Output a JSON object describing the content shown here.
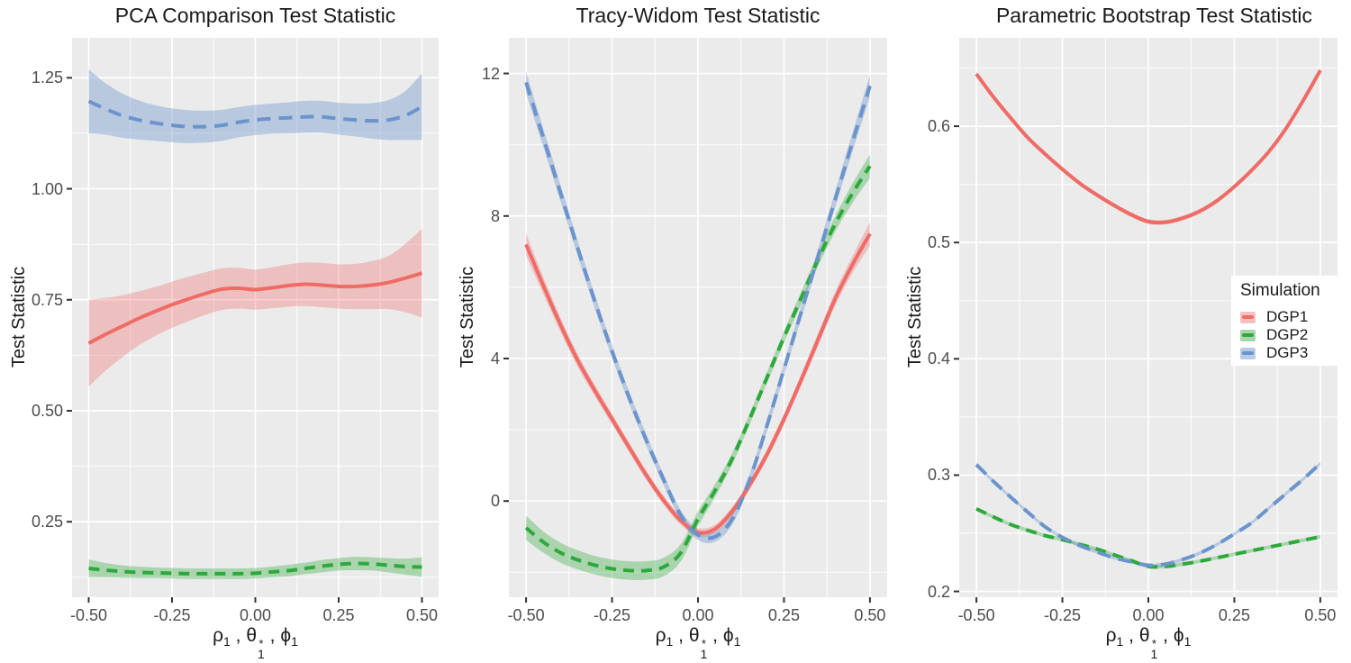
{
  "figure": {
    "ylabel": "Test Statistic",
    "xlabel": {
      "rho": "ρ",
      "rho_sub": "1",
      "sep1": " , ",
      "theta": "θ",
      "theta_sub": "1",
      "theta_sup": "*",
      "sep2": " , ",
      "phi": "ϕ",
      "phi_sub": "1"
    },
    "colors": {
      "panel_background": "#EBEBEB",
      "grid": "#FFFFFF",
      "tick_mark": "#333333",
      "tick_label": "#4D4D4D",
      "text": "#1A1A1A"
    }
  },
  "legend": {
    "title": "Simulation",
    "items": [
      {
        "label": "DGP1",
        "line_color": "#EF6B66",
        "fill_color": "#F5C1BF"
      },
      {
        "label": "DGP2",
        "line_color": "#2DA93C",
        "fill_color": "#ABD4AE"
      },
      {
        "label": "DGP3",
        "line_color": "#6B94CD",
        "fill_color": "#B7CBE9"
      }
    ]
  },
  "chart_data": [
    {
      "type": "line",
      "title": "PCA Comparison Test Statistic",
      "ylabel": "Test Statistic",
      "xlim": [
        -0.55,
        0.55
      ],
      "ylim": [
        0.08,
        1.34
      ],
      "x_ticks": [
        -0.5,
        -0.25,
        0,
        0.25,
        0.5
      ],
      "x_tick_labels": [
        "-0.50",
        "-0.25",
        "0.00",
        "0.25",
        "0.50"
      ],
      "y_ticks": [
        0.25,
        0.5,
        0.75,
        1.0,
        1.25
      ],
      "y_tick_labels": [
        "0.25",
        "0.50",
        "0.75",
        "1.00",
        "1.25"
      ],
      "grid": true,
      "legend_position": "none",
      "x": [
        -0.5,
        -0.45,
        -0.4,
        -0.35,
        -0.3,
        -0.25,
        -0.2,
        -0.15,
        -0.1,
        -0.05,
        0,
        0.05,
        0.1,
        0.15,
        0.2,
        0.25,
        0.3,
        0.35,
        0.4,
        0.45,
        0.5
      ],
      "series": [
        {
          "name": "DGP1",
          "line_color": "#EF6B66",
          "ribbon_color": "rgba(239,107,102,0.33)",
          "dash": null,
          "y": [
            0.652,
            0.672,
            0.69,
            0.708,
            0.724,
            0.739,
            0.752,
            0.764,
            0.774,
            0.776,
            0.773,
            0.777,
            0.782,
            0.785,
            0.783,
            0.78,
            0.78,
            0.783,
            0.789,
            0.799,
            0.81
          ],
          "ribbon_hw": [
            0.098,
            0.082,
            0.07,
            0.061,
            0.055,
            0.052,
            0.05,
            0.048,
            0.047,
            0.046,
            0.045,
            0.046,
            0.048,
            0.049,
            0.05,
            0.05,
            0.051,
            0.054,
            0.06,
            0.077,
            0.1
          ]
        },
        {
          "name": "DGP2",
          "line_color": "#2DA93C",
          "ribbon_color": "rgba(45,169,60,0.35)",
          "dash": "12 8",
          "y": [
            0.145,
            0.141,
            0.138,
            0.136,
            0.135,
            0.134,
            0.133,
            0.133,
            0.133,
            0.133,
            0.134,
            0.137,
            0.14,
            0.145,
            0.15,
            0.154,
            0.156,
            0.155,
            0.152,
            0.149,
            0.148
          ],
          "ribbon_hw": [
            0.02,
            0.016,
            0.014,
            0.013,
            0.012,
            0.012,
            0.012,
            0.012,
            0.012,
            0.012,
            0.012,
            0.012,
            0.013,
            0.013,
            0.014,
            0.014,
            0.015,
            0.015,
            0.016,
            0.018,
            0.022
          ]
        },
        {
          "name": "DGP3",
          "line_color": "#6B94CD",
          "ribbon_color": "rgba(107,148,205,0.4)",
          "dash": "15 9",
          "y": [
            1.197,
            1.18,
            1.165,
            1.155,
            1.148,
            1.143,
            1.14,
            1.14,
            1.143,
            1.15,
            1.155,
            1.158,
            1.16,
            1.162,
            1.162,
            1.158,
            1.155,
            1.153,
            1.155,
            1.165,
            1.185
          ],
          "ribbon_hw": [
            0.072,
            0.058,
            0.05,
            0.044,
            0.04,
            0.038,
            0.037,
            0.036,
            0.035,
            0.034,
            0.034,
            0.034,
            0.035,
            0.036,
            0.036,
            0.036,
            0.037,
            0.04,
            0.045,
            0.055,
            0.075
          ]
        }
      ]
    },
    {
      "type": "line",
      "title": "Tracy-Widom Test Statistic",
      "ylabel": "Test Statistic",
      "xlim": [
        -0.55,
        0.55
      ],
      "ylim": [
        -2.7,
        13.0
      ],
      "x_ticks": [
        -0.5,
        -0.25,
        0,
        0.25,
        0.5
      ],
      "x_tick_labels": [
        "-0.50",
        "-0.25",
        "0.00",
        "0.25",
        "0.50"
      ],
      "y_ticks": [
        0,
        4,
        8,
        12
      ],
      "y_tick_labels": [
        "0",
        "4",
        "8",
        "12"
      ],
      "grid": true,
      "legend_position": "none",
      "x": [
        -0.5,
        -0.45,
        -0.4,
        -0.35,
        -0.3,
        -0.25,
        -0.2,
        -0.15,
        -0.1,
        -0.05,
        0,
        0.05,
        0.1,
        0.15,
        0.2,
        0.25,
        0.3,
        0.35,
        0.4,
        0.45,
        0.5
      ],
      "series": [
        {
          "name": "DGP1",
          "line_color": "#EF6B66",
          "ribbon_color": "rgba(239,107,102,0.33)",
          "dash": null,
          "y": [
            7.2,
            6.05,
            4.95,
            3.95,
            3.1,
            2.3,
            1.5,
            0.72,
            0.02,
            -0.55,
            -0.88,
            -0.78,
            -0.28,
            0.45,
            1.3,
            2.3,
            3.4,
            4.55,
            5.7,
            6.65,
            7.5
          ],
          "ribbon_hw": [
            0.32,
            0.24,
            0.2,
            0.18,
            0.16,
            0.15,
            0.14,
            0.13,
            0.13,
            0.12,
            0.12,
            0.12,
            0.13,
            0.13,
            0.14,
            0.15,
            0.16,
            0.18,
            0.2,
            0.24,
            0.33
          ]
        },
        {
          "name": "DGP2",
          "line_color": "#2DA93C",
          "ribbon_color": "rgba(45,169,60,0.35)",
          "dash": "12 8",
          "y": [
            -0.75,
            -1.15,
            -1.45,
            -1.65,
            -1.8,
            -1.9,
            -1.95,
            -1.95,
            -1.85,
            -1.45,
            -0.5,
            0.3,
            1.2,
            2.3,
            3.45,
            4.6,
            5.7,
            6.8,
            7.8,
            8.65,
            9.4
          ],
          "ribbon_hw": [
            0.34,
            0.3,
            0.28,
            0.27,
            0.26,
            0.26,
            0.26,
            0.26,
            0.26,
            0.24,
            0.21,
            0.18,
            0.16,
            0.15,
            0.15,
            0.16,
            0.17,
            0.19,
            0.22,
            0.27,
            0.33
          ]
        },
        {
          "name": "DGP3",
          "line_color": "#6B94CD",
          "ribbon_color": "rgba(107,148,205,0.4)",
          "dash": "15 9",
          "y": [
            11.75,
            10.2,
            8.65,
            7.1,
            5.6,
            4.2,
            2.9,
            1.7,
            0.6,
            -0.4,
            -0.95,
            -1.0,
            -0.5,
            0.6,
            2.1,
            3.7,
            5.3,
            6.9,
            8.5,
            10.1,
            11.65
          ],
          "ribbon_hw": [
            0.3,
            0.26,
            0.23,
            0.21,
            0.19,
            0.18,
            0.17,
            0.16,
            0.15,
            0.14,
            0.14,
            0.14,
            0.15,
            0.15,
            0.16,
            0.17,
            0.18,
            0.2,
            0.22,
            0.26,
            0.3
          ]
        }
      ]
    },
    {
      "type": "line",
      "title": "Parametric Bootstrap Test Statistic",
      "ylabel": "Test Statistic",
      "xlim": [
        -0.55,
        0.55
      ],
      "ylim": [
        0.195,
        0.676
      ],
      "x_ticks": [
        -0.5,
        -0.25,
        0,
        0.25,
        0.5
      ],
      "x_tick_labels": [
        "-0.50",
        "-0.25",
        "0.00",
        "0.25",
        "0.50"
      ],
      "y_ticks": [
        0.2,
        0.3,
        0.4,
        0.5,
        0.6
      ],
      "y_tick_labels": [
        "0.2",
        "0.3",
        "0.4",
        "0.5",
        "0.6"
      ],
      "grid": true,
      "legend_position": "inside-right",
      "x": [
        -0.5,
        -0.45,
        -0.4,
        -0.35,
        -0.3,
        -0.25,
        -0.2,
        -0.15,
        -0.1,
        -0.05,
        0,
        0.05,
        0.1,
        0.15,
        0.2,
        0.25,
        0.3,
        0.35,
        0.4,
        0.45,
        0.5
      ],
      "series": [
        {
          "name": "DGP1",
          "line_color": "#EF6B66",
          "ribbon_color": "rgba(239,107,102,0.33)",
          "dash": null,
          "y": [
            0.645,
            0.625,
            0.607,
            0.59,
            0.576,
            0.563,
            0.551,
            0.541,
            0.532,
            0.524,
            0.518,
            0.5175,
            0.521,
            0.527,
            0.536,
            0.548,
            0.562,
            0.578,
            0.598,
            0.622,
            0.648
          ],
          "ribbon_hw": 0.002
        },
        {
          "name": "DGP2",
          "line_color": "#2DA93C",
          "ribbon_color": "rgba(45,169,60,0.35)",
          "dash": "12 8",
          "y": [
            0.271,
            0.264,
            0.2575,
            0.2525,
            0.248,
            0.2445,
            0.2405,
            0.2365,
            0.2315,
            0.2265,
            0.2215,
            0.2215,
            0.2235,
            0.226,
            0.229,
            0.232,
            0.235,
            0.238,
            0.241,
            0.244,
            0.247
          ],
          "ribbon_hw": 0.0015
        },
        {
          "name": "DGP3",
          "line_color": "#6B94CD",
          "ribbon_color": "rgba(107,148,205,0.4)",
          "dash": "15 9",
          "y": [
            0.309,
            0.2945,
            0.281,
            0.268,
            0.2555,
            0.2465,
            0.2395,
            0.234,
            0.229,
            0.2255,
            0.2225,
            0.2235,
            0.2275,
            0.233,
            0.2405,
            0.2495,
            0.259,
            0.2715,
            0.284,
            0.2965,
            0.31
          ],
          "ribbon_hw": 0.0015
        }
      ]
    }
  ]
}
